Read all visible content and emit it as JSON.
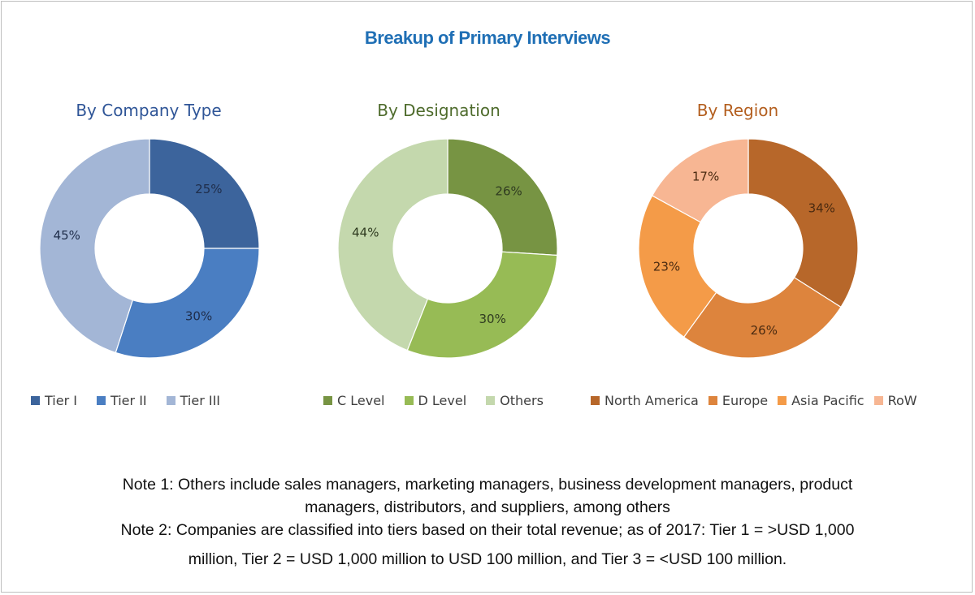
{
  "title": "Breakup of Primary Interviews",
  "title_color": "#1f6fb5",
  "charts": [
    {
      "title": "By Company Type",
      "title_color": "#2f5597",
      "label_color": "#1f2d4a",
      "segments": [
        {
          "label": "Tier I",
          "value": 25,
          "text": "25%",
          "color": "#3c649c"
        },
        {
          "label": "Tier II",
          "value": 30,
          "text": "30%",
          "color": "#4a7ec2"
        },
        {
          "label": "Tier III",
          "value": 45,
          "text": "45%",
          "color": "#a3b6d6"
        }
      ]
    },
    {
      "title": "By Designation",
      "title_color": "#4e6b2c",
      "label_color": "#2f3b20",
      "segments": [
        {
          "label": "C Level",
          "value": 26,
          "text": "26%",
          "color": "#779443"
        },
        {
          "label": "D Level",
          "value": 30,
          "text": "30%",
          "color": "#97bb55"
        },
        {
          "label": "Others",
          "value": 44,
          "text": "44%",
          "color": "#c4d8ad"
        }
      ]
    },
    {
      "title": "By Region",
      "title_color": "#b35e1e",
      "label_color": "#4a2a10",
      "segments": [
        {
          "label": "North America",
          "value": 34,
          "text": "34%",
          "color": "#b7672a"
        },
        {
          "label": "Europe",
          "value": 26,
          "text": "26%",
          "color": "#dd843d"
        },
        {
          "label": "Asia Pacific",
          "value": 23,
          "text": "23%",
          "color": "#f49b48"
        },
        {
          "label": "RoW",
          "value": 17,
          "text": "17%",
          "color": "#f7b693"
        }
      ]
    }
  ],
  "notes": {
    "note1_line1": "Note 1: Others include sales managers, marketing managers, business development managers, product",
    "note1_line2": "managers, distributors, and suppliers, among others",
    "note2_line1": "Note 2: Companies are classified into tiers based on their total revenue; as of 2017: Tier 1 = >USD 1,000",
    "note2_line2": "million, Tier 2 = USD 1,000 million to USD 100 million, and Tier 3 = <USD 100 million."
  },
  "chart_data": [
    {
      "type": "pie",
      "title": "By Company Type",
      "categories": [
        "Tier I",
        "Tier II",
        "Tier III"
      ],
      "values": [
        25,
        30,
        45
      ],
      "unit": "%",
      "legend_position": "bottom"
    },
    {
      "type": "pie",
      "title": "By Designation",
      "categories": [
        "C Level",
        "D Level",
        "Others"
      ],
      "values": [
        26,
        30,
        44
      ],
      "unit": "%",
      "legend_position": "bottom"
    },
    {
      "type": "pie",
      "title": "By Region",
      "categories": [
        "North America",
        "Europe",
        "Asia Pacific",
        "RoW"
      ],
      "values": [
        34,
        26,
        23,
        17
      ],
      "unit": "%",
      "legend_position": "bottom"
    }
  ]
}
